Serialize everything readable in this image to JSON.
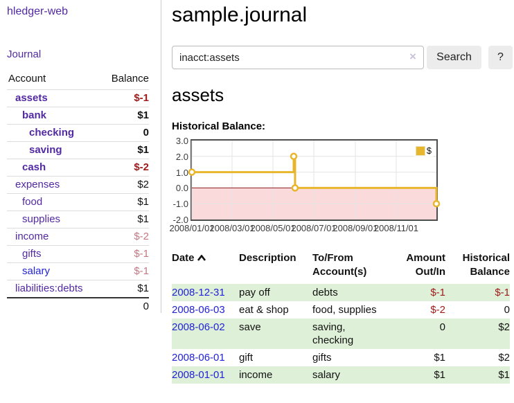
{
  "app": {
    "brand": "hledger-web",
    "nav_journal": "Journal"
  },
  "sidebar": {
    "header": {
      "account": "Account",
      "balance": "Balance"
    },
    "accounts": [
      {
        "name": "assets",
        "balance": "$-1"
      },
      {
        "name": "bank",
        "balance": "$1"
      },
      {
        "name": "checking",
        "balance": "0"
      },
      {
        "name": "saving",
        "balance": "$1"
      },
      {
        "name": "cash",
        "balance": "$-2"
      },
      {
        "name": "expenses",
        "balance": "$2"
      },
      {
        "name": "food",
        "balance": "$1"
      },
      {
        "name": "supplies",
        "balance": "$1"
      },
      {
        "name": "income",
        "balance": "$-2"
      },
      {
        "name": "gifts",
        "balance": "$-1"
      },
      {
        "name": "salary",
        "balance": "$-1"
      },
      {
        "name": "liabilities:debts",
        "balance": "$1"
      }
    ],
    "total": "0"
  },
  "main": {
    "title": "sample.journal",
    "search": {
      "value": "inacct:assets",
      "clear": "×",
      "button": "Search",
      "help": "?"
    },
    "account_heading": "assets",
    "chart_label": "Historical Balance:"
  },
  "chart_data": {
    "type": "line",
    "title": "Historical Balance",
    "series": [
      {
        "name": "$",
        "color": "#e8b62c",
        "style": "step",
        "points": [
          [
            "2008-01-01",
            1
          ],
          [
            "2008-06-01",
            2
          ],
          [
            "2008-06-03",
            0
          ],
          [
            "2008-12-31",
            -1
          ]
        ]
      }
    ],
    "x_range": [
      "2008-01-01",
      "2008-12-31"
    ],
    "x_ticks": [
      "2008/01/01",
      "2008/03/01",
      "2008/05/01",
      "2008/07/01",
      "2008/09/01",
      "2008/11/01"
    ],
    "y_ticks": [
      3.0,
      2.0,
      1.0,
      0.0,
      -1.0,
      -2.0
    ],
    "ylim": [
      -2,
      3
    ],
    "grid": true,
    "legend_position": "top-right",
    "negative_fill": "#fbdadb",
    "zero_line_color": "#8b1a1a",
    "grid_color": "#e4e4e4",
    "border_color": "#4d4d4d"
  },
  "register": {
    "headers": {
      "date": "Date",
      "description": "Description",
      "tofrom": "To/From Account(s)",
      "amount": "Amount Out/In",
      "balance": "Historical Balance"
    },
    "rows": [
      {
        "date": "2008-12-31",
        "description": "pay off",
        "accounts": "debts",
        "amount": "$-1",
        "balance": "$-1"
      },
      {
        "date": "2008-06-03",
        "description": "eat & shop",
        "accounts": "food, supplies",
        "amount": "$-2",
        "balance": "0"
      },
      {
        "date": "2008-06-02",
        "description": "save",
        "accounts": "saving, checking",
        "amount": "0",
        "balance": "$2"
      },
      {
        "date": "2008-06-01",
        "description": "gift",
        "accounts": "gifts",
        "amount": "$1",
        "balance": "$2"
      },
      {
        "date": "2008-01-01",
        "description": "income",
        "accounts": "salary",
        "amount": "$1",
        "balance": "$1"
      }
    ]
  }
}
